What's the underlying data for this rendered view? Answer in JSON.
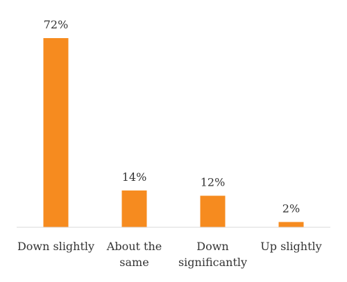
{
  "chart_data": {
    "type": "bar",
    "categories": [
      "Down slightly",
      "About the same",
      "Down significantly",
      "Up slightly"
    ],
    "category_label_lines": [
      [
        "Down slightly"
      ],
      [
        "About the",
        "same"
      ],
      [
        "Down",
        "significantly"
      ],
      [
        "Up slightly"
      ]
    ],
    "values": [
      72,
      14,
      12,
      2
    ],
    "value_labels": [
      "72%",
      "14%",
      "12%",
      "2%"
    ],
    "unit": "%",
    "ylim": [
      0,
      72
    ],
    "grid": false,
    "bar_color": "#F68B1F",
    "axis_color": "#D9D9D9"
  }
}
